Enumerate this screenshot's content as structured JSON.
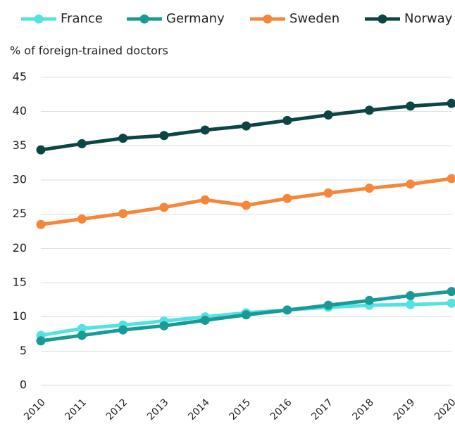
{
  "chart_data": {
    "type": "line",
    "y_label": "% of foreign-trained doctors",
    "categories": [
      "2010",
      "2011",
      "2012",
      "2013",
      "2014",
      "2015",
      "2016",
      "2017",
      "2018",
      "2019",
      "2020"
    ],
    "series": [
      {
        "name": "France",
        "color": "#52e3e1",
        "values": [
          7.3,
          8.3,
          8.8,
          9.4,
          10.0,
          10.6,
          11.0,
          11.4,
          11.7,
          11.8,
          12.0
        ]
      },
      {
        "name": "Germany",
        "color": "#1a9a96",
        "values": [
          6.5,
          7.3,
          8.1,
          8.7,
          9.5,
          10.3,
          11.0,
          11.7,
          12.4,
          13.1,
          13.7
        ]
      },
      {
        "name": "Sweden",
        "color": "#f5873a",
        "values": [
          23.5,
          24.3,
          25.1,
          26.0,
          27.1,
          26.3,
          27.3,
          28.1,
          28.8,
          29.4,
          30.2
        ]
      },
      {
        "name": "Norway",
        "color": "#0d4545",
        "values": [
          34.4,
          35.3,
          36.1,
          36.5,
          37.3,
          37.9,
          38.7,
          39.5,
          40.2,
          40.8,
          41.2
        ]
      }
    ],
    "ylim": [
      0,
      45
    ],
    "yticks": [
      0,
      5,
      10,
      15,
      20,
      25,
      30,
      35,
      40,
      45
    ],
    "grid": true
  }
}
